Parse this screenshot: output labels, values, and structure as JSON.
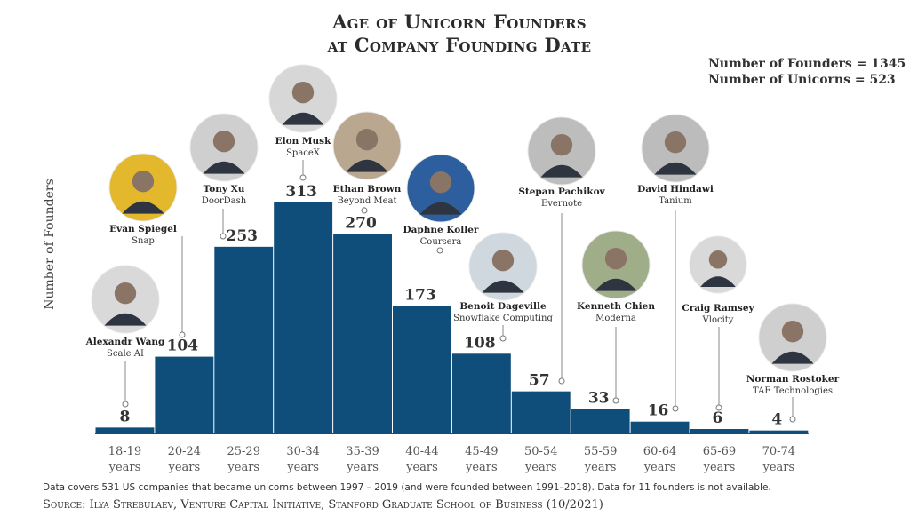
{
  "chart_data": {
    "type": "bar",
    "title_line1": "Age of Unicorn Founders",
    "title_line2": "at Company Founding Date",
    "ylabel": "Number of Founders",
    "stats": [
      "Number of Founders = 1345",
      "Number of Unicorns = 523"
    ],
    "categories": [
      [
        "18-19",
        "years"
      ],
      [
        "20-24",
        "years"
      ],
      [
        "25-29",
        "years"
      ],
      [
        "30-34",
        "years"
      ],
      [
        "35-39",
        "years"
      ],
      [
        "40-44",
        "years"
      ],
      [
        "45-49",
        "years"
      ],
      [
        "50-54",
        "years"
      ],
      [
        "55-59",
        "years"
      ],
      [
        "60-64",
        "years"
      ],
      [
        "65-69",
        "years"
      ],
      [
        "70-74",
        "years"
      ]
    ],
    "values": [
      8,
      104,
      253,
      313,
      270,
      173,
      108,
      57,
      33,
      16,
      6,
      4
    ],
    "ylim": [
      0,
      313
    ],
    "bar_color": "#0f4d7a",
    "annotations": [
      {
        "name": "Alexandr Wang",
        "company": "Scale AI"
      },
      {
        "name": "Evan Spiegel",
        "company": "Snap"
      },
      {
        "name": "Tony Xu",
        "company": "DoorDash"
      },
      {
        "name": "Elon Musk",
        "company": "SpaceX"
      },
      {
        "name": "Ethan Brown",
        "company": "Beyond Meat"
      },
      {
        "name": "Daphne Koller",
        "company": "Coursera"
      },
      {
        "name": "Benoit Dageville",
        "company": "Snowflake Computing"
      },
      {
        "name": "Stepan Pachikov",
        "company": "Evernote"
      },
      {
        "name": "Kenneth Chien",
        "company": "Moderna"
      },
      {
        "name": "David Hindawi",
        "company": "Tanium"
      },
      {
        "name": "Craig Ramsey",
        "company": "Vlocity"
      },
      {
        "name": "Norman Rostoker",
        "company": "TAE Technologies"
      }
    ]
  },
  "footer": {
    "note": "Data covers 531 US companies that became unicorns between 1997 – 2019 (and were founded between 1991–2018). Data for 11 founders is not available.",
    "source": "Source: Ilya Strebulaev, Venture Capital Initiative, Stanford Graduate School of Business (10/2021)"
  }
}
